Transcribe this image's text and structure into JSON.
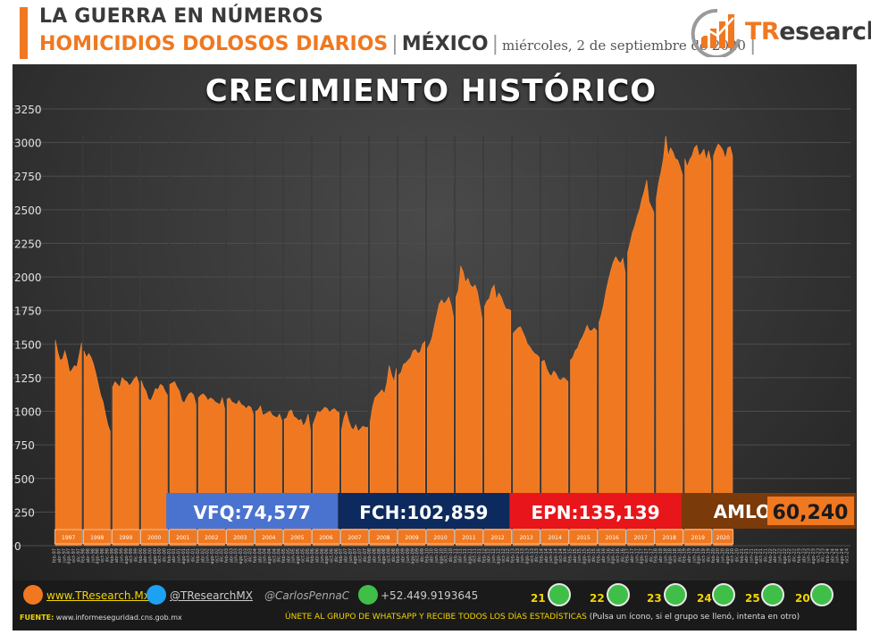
{
  "header": {
    "title": "LA GUERRA EN NÚMEROS",
    "subtitle": "HOMICIDIOS DOLOSOS DIARIOS",
    "country": "MÉXICO",
    "date": "miércoles, 2 de septiembre de 2020",
    "logo_text_1": "TR",
    "logo_text_2": "esearch"
  },
  "chart_title": "CRECIMIENTO HISTÓRICO",
  "chart_data": {
    "type": "area",
    "title": "CRECIMIENTO HISTÓRICO",
    "ylim": [
      0,
      3250
    ],
    "yticks": [
      "0",
      "250",
      "500",
      "750",
      "1000",
      "1250",
      "1500",
      "1750",
      "2000",
      "2250",
      "2500",
      "2750",
      "3000",
      "3250"
    ],
    "year_labels": [
      "1997",
      "1998",
      "1999",
      "2000",
      "2001",
      "2002",
      "2003",
      "2004",
      "2005",
      "2006",
      "2007",
      "2008",
      "2009",
      "2010",
      "2011",
      "2012",
      "2013",
      "2014",
      "2015",
      "2016",
      "2017",
      "2018",
      "2019",
      "2020"
    ],
    "grid": true,
    "monthly_series_from": "1997-01",
    "series": [
      {
        "values": [
          1530,
          1440,
          1380,
          1390,
          1450,
          1380,
          1290,
          1310,
          1340,
          1330,
          1420,
          1510,
          1450,
          1400,
          1430,
          1400,
          1350,
          1280,
          1200,
          1120,
          1070,
          980,
          900,
          850,
          1180,
          1220,
          1200,
          1180,
          1250,
          1230,
          1220,
          1190,
          1210,
          1240,
          1260,
          1210,
          1230,
          1180,
          1150,
          1090,
          1080,
          1120,
          1170,
          1160,
          1200,
          1190,
          1150,
          1120,
          1200,
          1210,
          1220,
          1180,
          1150,
          1080,
          1060,
          1100,
          1130,
          1140,
          1120,
          1050,
          1100,
          1120,
          1130,
          1110,
          1080,
          1100,
          1090,
          1070,
          1060,
          1050,
          1100,
          1020,
          1090,
          1100,
          1070,
          1060,
          1050,
          1080,
          1050,
          1040,
          1020,
          1040,
          1030,
          980,
          1000,
          1010,
          1040,
          970,
          980,
          990,
          1000,
          970,
          960,
          950,
          980,
          930,
          940,
          950,
          1000,
          1010,
          960,
          950,
          930,
          940,
          890,
          920,
          980,
          860,
          900,
          950,
          1000,
          990,
          1010,
          1030,
          1020,
          990,
          1010,
          1020,
          1000,
          990,
          860,
          950,
          1000,
          930,
          880,
          860,
          900,
          850,
          870,
          890,
          880,
          880,
          920,
          1030,
          1100,
          1120,
          1140,
          1160,
          1130,
          1210,
          1340,
          1270,
          1220,
          1320,
          1270,
          1290,
          1350,
          1360,
          1380,
          1400,
          1450,
          1460,
          1430,
          1440,
          1500,
          1520,
          1470,
          1500,
          1550,
          1640,
          1720,
          1800,
          1830,
          1800,
          1820,
          1850,
          1790,
          1700,
          1850,
          1900,
          2080,
          2040,
          1960,
          1990,
          1940,
          1920,
          1940,
          1890,
          1790,
          1690,
          1780,
          1820,
          1840,
          1910,
          1940,
          1830,
          1880,
          1850,
          1800,
          1760,
          1760,
          1750,
          1580,
          1600,
          1620,
          1630,
          1590,
          1550,
          1500,
          1480,
          1450,
          1430,
          1420,
          1400,
          1370,
          1380,
          1320,
          1280,
          1260,
          1300,
          1280,
          1240,
          1230,
          1250,
          1240,
          1220,
          1380,
          1400,
          1450,
          1470,
          1520,
          1550,
          1590,
          1640,
          1600,
          1600,
          1620,
          1600,
          1660,
          1720,
          1800,
          1900,
          1980,
          2050,
          2110,
          2150,
          2120,
          2100,
          2140,
          2030,
          2180,
          2250,
          2330,
          2380,
          2450,
          2500,
          2580,
          2640,
          2720,
          2560,
          2520,
          2480,
          2580,
          2700,
          2780,
          2880,
          3050,
          2900,
          2960,
          2930,
          2880,
          2870,
          2820,
          2760,
          2880,
          2820,
          2870,
          2900,
          2960,
          2980,
          2900,
          2920,
          2950,
          2870,
          2940,
          2860,
          2900,
          2950,
          2990,
          2970,
          2940,
          2880,
          2960,
          2970,
          2900
        ]
      }
    ],
    "x_axis_month_tick_labels": [
      "feb-97",
      "abr-97",
      "jun-97",
      "ago-97",
      "oct-97",
      "dic-97",
      "feb-98",
      "abr-98",
      "jun-98",
      "ago-98",
      "oct-98",
      "dic-98",
      "feb-99",
      "abr-99",
      "jun-99",
      "ago-99",
      "oct-99",
      "dic-99",
      "feb-00",
      "abr-00",
      "jun-00",
      "ago-00",
      "oct-00",
      "dic-00",
      "feb-01",
      "abr-01",
      "jun-01",
      "ago-01",
      "oct-01",
      "dic-01",
      "feb-02",
      "abr-02",
      "jun-02",
      "ago-02",
      "oct-02",
      "dic-02",
      "feb-03",
      "abr-03",
      "jun-03",
      "ago-03",
      "oct-03",
      "dic-03",
      "feb-04",
      "abr-04",
      "jun-04",
      "ago-04",
      "oct-04",
      "dic-04",
      "feb-05",
      "abr-05",
      "jun-05",
      "ago-05",
      "oct-05",
      "dic-05",
      "feb-06",
      "abr-06",
      "jun-06",
      "ago-06",
      "oct-06",
      "dic-06",
      "feb-07",
      "abr-07",
      "jun-07",
      "ago-07",
      "oct-07",
      "dic-07",
      "feb-08",
      "abr-08",
      "jun-08",
      "ago-08",
      "oct-08",
      "dic-08",
      "feb-09",
      "abr-09",
      "jun-09",
      "ago-09",
      "oct-09",
      "dic-09",
      "feb-10",
      "abr-10",
      "jun-10",
      "ago-10",
      "oct-10",
      "dic-10",
      "feb-11",
      "abr-11",
      "jun-11",
      "ago-11",
      "oct-11",
      "dic-11",
      "feb-12",
      "abr-12",
      "jun-12",
      "ago-12",
      "oct-12",
      "dic-12",
      "feb-13",
      "abr-13",
      "jun-13",
      "ago-13",
      "oct-13",
      "dic-13",
      "feb-14",
      "abr-14",
      "jun-14",
      "ago-14",
      "oct-14",
      "dic-14",
      "feb-15",
      "abr-15",
      "jun-15",
      "ago-15",
      "oct-15",
      "dic-15",
      "feb-16",
      "abr-16",
      "jun-16",
      "ago-16",
      "oct-16",
      "dic-16",
      "feb-17",
      "abr-17",
      "jun-17",
      "ago-17",
      "oct-17",
      "dic-17",
      "feb-18",
      "abr-18",
      "jun-18",
      "ago-18",
      "oct-18",
      "dic-18",
      "feb-19",
      "abr-19",
      "jun-19",
      "ago-19",
      "oct-19",
      "dic-19",
      "feb-20",
      "abr-20",
      "jun-20",
      "ago-20",
      "oct-20",
      "dic-20",
      "feb-21",
      "abr-21",
      "jun-21",
      "ago-21",
      "oct-21",
      "dic-21",
      "feb-22",
      "abr-22",
      "jun-22",
      "ago-22",
      "oct-22",
      "dic-22",
      "feb-23",
      "abr-23",
      "jun-23",
      "ago-23",
      "oct-23",
      "dic-23",
      "feb-24",
      "abr-24",
      "jun-24",
      "ago-24",
      "oct-24"
    ],
    "x_axis_end": "2024-11",
    "sexenios": [
      {
        "label": "VFQ:",
        "value": "74,577",
        "color": "#4a73d0",
        "from": "2000-12",
        "to": "2006-11"
      },
      {
        "label": "FCH:",
        "value": "102,859",
        "color": "#0d2a5e",
        "from": "2006-12",
        "to": "2012-11"
      },
      {
        "label": "EPN:",
        "value": "135,139",
        "color": "#e8151a",
        "from": "2012-12",
        "to": "2018-11"
      },
      {
        "label": "AMLO:",
        "value": "60,240",
        "color": "#7a3a0a",
        "from": "2018-12",
        "to": "2020-08"
      }
    ],
    "colors": {
      "fill": "#f07820",
      "background": "#3a3a3a",
      "amlo_value_bg": "#f07820"
    }
  },
  "footer": {
    "web": "www.TResearch.Mx",
    "twitter": "@TResearchMX",
    "handle": "@CarlosPennaC",
    "phone": "+52.449.9193645",
    "whatsapp_groups": [
      "21",
      "22",
      "23",
      "24",
      "25",
      "20"
    ],
    "source_label": "FUENTE:",
    "source": "www.informeseguridad.cns.gob.mx",
    "cta": "ÚNETE AL GRUPO DE WHATSAPP Y RECIBE TODOS LOS DÍAS ESTADÍSTICAS",
    "cta_note": "(Pulsa un ícono, si el grupo se llenó, intenta en otro)"
  }
}
